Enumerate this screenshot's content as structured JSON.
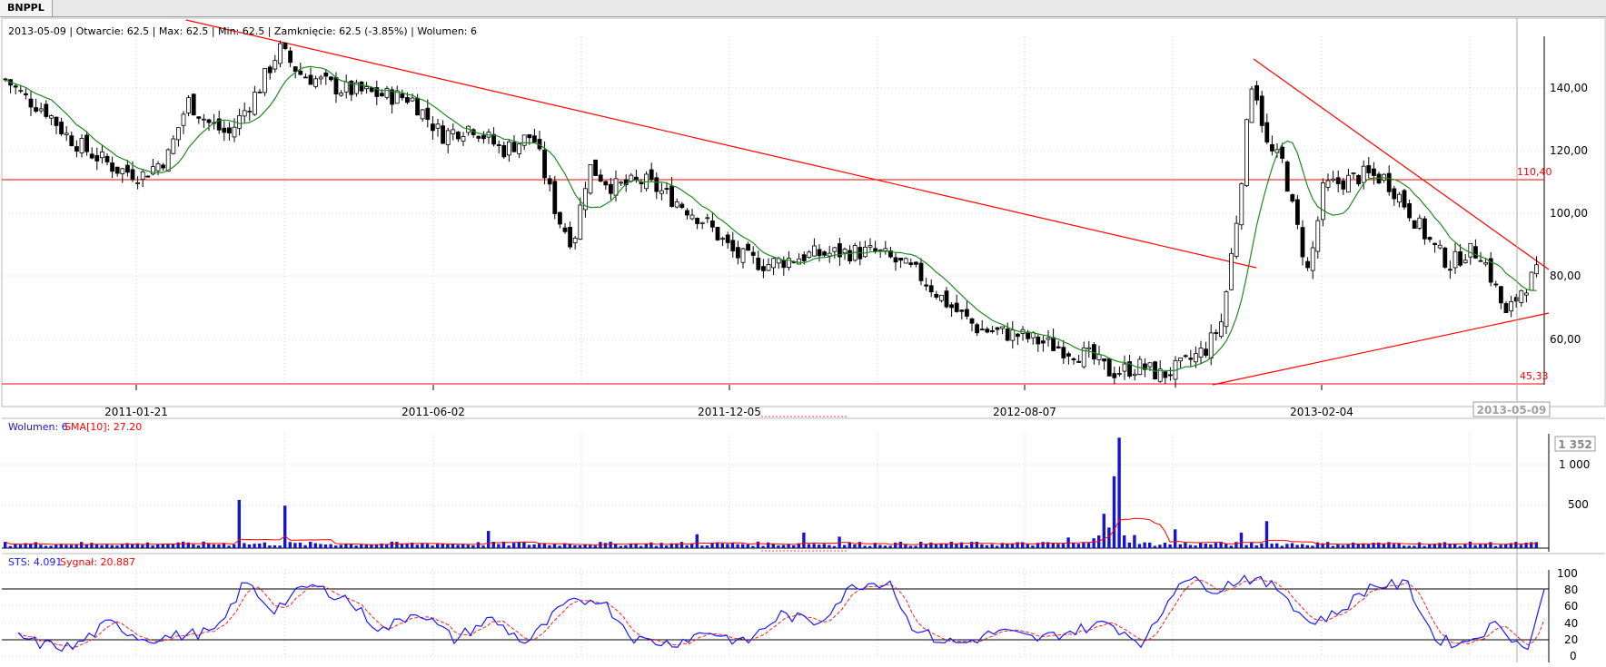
{
  "tab": {
    "label": "BNPPL"
  },
  "price_panel": {
    "info": "2013-05-09 | Otwarcie: 62.5 | Max: 62.5 | Min: 62.5 | Zamknięcie: 62.5 (-3.85%) | Wolumen: 6",
    "y_ticks": [
      "140,00",
      "120,00",
      "100,00",
      "80,00",
      "60,00"
    ],
    "level_high": "110,40",
    "level_low": "45,33",
    "date_labels": [
      "2011-01-21",
      "2011-06-02",
      "2011-12-05",
      "2012-08-07",
      "2013-02-04"
    ],
    "current_date": "2013-05-09"
  },
  "volume_panel": {
    "label_volume": "Wolumen: 6",
    "label_sma": "SMA[10]: 27.20",
    "max_label": "1 352",
    "y_ticks": [
      "1 000",
      "500"
    ]
  },
  "sts_panel": {
    "label_sts": "STS: 4.091",
    "label_signal": "Sygnał: 20.887",
    "y_ticks": [
      "100",
      "80",
      "60",
      "40",
      "20",
      "0"
    ]
  },
  "colors": {
    "candle_up": "#ffffff",
    "candle_down": "#000000",
    "sma_line": "#1f8a1f",
    "trend_lines": "#ff0000",
    "volume_bars": "#1515d0",
    "sts_line": "#1a1aff",
    "signal_line": "#ff2020"
  },
  "chart_data": [
    {
      "type": "candlestick",
      "title": "",
      "ylim": [
        44,
        157
      ],
      "y_ticks": [
        140,
        120,
        100,
        80,
        60
      ],
      "x_tick_labels": [
        "2011-01-21",
        "2011-06-02",
        "2011-12-05",
        "2012-08-07",
        "2013-02-04"
      ],
      "horizontal_levels": [
        110.4,
        45.33
      ],
      "close_anchors": [
        [
          0,
          143
        ],
        [
          20,
          137
        ],
        [
          40,
          133
        ],
        [
          60,
          125
        ],
        [
          80,
          120
        ],
        [
          110,
          114
        ],
        [
          135,
          112
        ],
        [
          160,
          118
        ],
        [
          180,
          136
        ],
        [
          200,
          129
        ],
        [
          220,
          125
        ],
        [
          250,
          140
        ],
        [
          270,
          153
        ],
        [
          290,
          145
        ],
        [
          330,
          140
        ],
        [
          370,
          138
        ],
        [
          400,
          137
        ],
        [
          430,
          125
        ],
        [
          460,
          128
        ],
        [
          490,
          120
        ],
        [
          520,
          125
        ],
        [
          545,
          98
        ],
        [
          560,
          90
        ],
        [
          575,
          115
        ],
        [
          600,
          108
        ],
        [
          630,
          110
        ],
        [
          660,
          104
        ],
        [
          690,
          97
        ],
        [
          720,
          86
        ],
        [
          750,
          83
        ],
        [
          790,
          86
        ],
        [
          830,
          87
        ],
        [
          860,
          87
        ],
        [
          900,
          80
        ],
        [
          930,
          70
        ],
        [
          960,
          62
        ],
        [
          1000,
          60
        ],
        [
          1040,
          56
        ],
        [
          1070,
          53
        ],
        [
          1090,
          48
        ],
        [
          1120,
          50
        ],
        [
          1140,
          47
        ],
        [
          1160,
          50
        ],
        [
          1185,
          56
        ],
        [
          1200,
          65
        ],
        [
          1215,
          100
        ],
        [
          1230,
          145
        ],
        [
          1245,
          120
        ],
        [
          1260,
          116
        ],
        [
          1270,
          100
        ],
        [
          1285,
          80
        ],
        [
          1300,
          108
        ],
        [
          1320,
          110
        ],
        [
          1340,
          112
        ],
        [
          1360,
          111
        ],
        [
          1375,
          105
        ],
        [
          1395,
          95
        ],
        [
          1410,
          88
        ],
        [
          1425,
          83
        ],
        [
          1440,
          87
        ],
        [
          1455,
          87
        ],
        [
          1470,
          75
        ],
        [
          1480,
          66
        ],
        [
          1495,
          75
        ],
        [
          1510,
          80
        ]
      ]
    },
    {
      "type": "bar",
      "title": "",
      "series": [
        {
          "name": "Wolumen",
          "max": 1352
        }
      ],
      "overlay": "SMA[10]",
      "ylim": [
        0,
        1400
      ],
      "y_ticks": [
        1000,
        500
      ],
      "last_value": 6,
      "last_sma": 27.2
    },
    {
      "type": "line",
      "title": "",
      "series": [
        {
          "name": "STS"
        },
        {
          "name": "Sygnał"
        }
      ],
      "ylim": [
        0,
        100
      ],
      "y_ticks": [
        100,
        80,
        60,
        40,
        20,
        0
      ],
      "reference_levels": [
        80,
        20
      ],
      "last_sts": 4.091,
      "last_signal": 20.887
    }
  ]
}
